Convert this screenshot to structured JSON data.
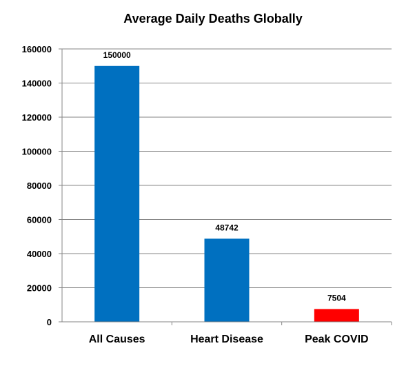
{
  "chart_data": {
    "type": "bar",
    "title": "Average Daily Deaths Globally",
    "xlabel": "",
    "ylabel": "",
    "categories": [
      "All Causes",
      "Heart Disease",
      "Peak COVID"
    ],
    "values": [
      150000,
      48742,
      7504
    ],
    "data_labels": [
      "150000",
      "48742",
      "7504"
    ],
    "colors": [
      "#0070C0",
      "#0070C0",
      "#FF0000"
    ],
    "ylim": [
      0,
      160000
    ],
    "yticks": [
      0,
      20000,
      40000,
      60000,
      80000,
      100000,
      120000,
      140000,
      160000
    ],
    "grid": true,
    "legend": "none"
  }
}
